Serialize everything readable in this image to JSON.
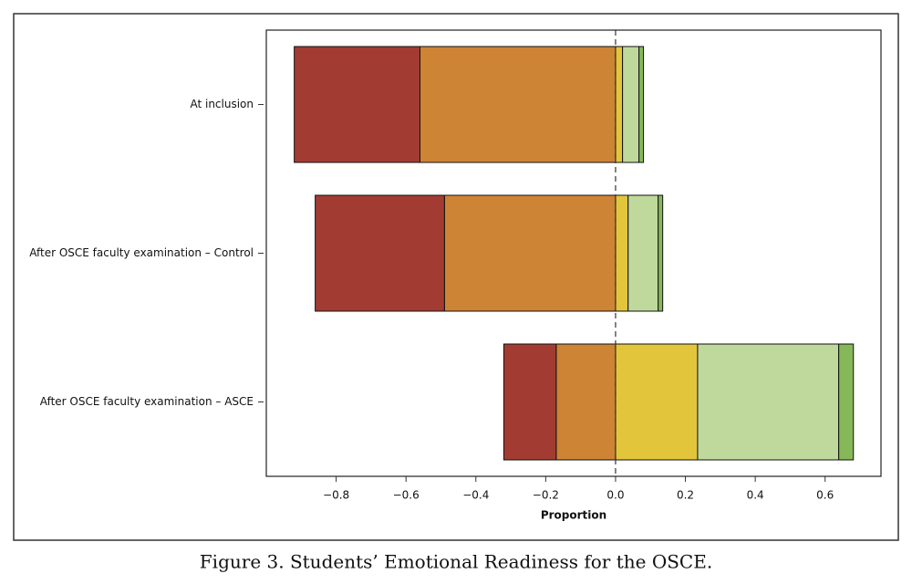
{
  "chart_data": {
    "type": "diverging-bar",
    "caption": "Figure 3.  Students’ Emotional Readiness for the OSCE.",
    "xlabel": "Proportion",
    "categories": [
      "At inclusion",
      "After OSCE faculty examination – Control",
      "After OSCE faculty examination – ASCE"
    ],
    "series": [
      {
        "color": "#a23c33",
        "values": [
          -0.36,
          -0.37,
          -0.15
        ]
      },
      {
        "color": "#cd8435",
        "values": [
          -0.56,
          -0.49,
          -0.17
        ]
      },
      {
        "color": "#e3c53c",
        "values": [
          0.02,
          0.036,
          0.235
        ]
      },
      {
        "color": "#bfd99d",
        "values": [
          0.047,
          0.086,
          0.404
        ]
      },
      {
        "color": "#86b85a",
        "values": [
          0.013,
          0.013,
          0.042
        ]
      }
    ],
    "xlim": [
      -1.0,
      0.76
    ],
    "xticks": [
      {
        "value": -0.8,
        "label": "−0.8"
      },
      {
        "value": -0.6,
        "label": "−0.6"
      },
      {
        "value": -0.4,
        "label": "−0.4"
      },
      {
        "value": -0.2,
        "label": "−0.2"
      },
      {
        "value": 0.0,
        "label": "0.0"
      },
      0.2,
      0.4,
      0.6
    ]
  }
}
